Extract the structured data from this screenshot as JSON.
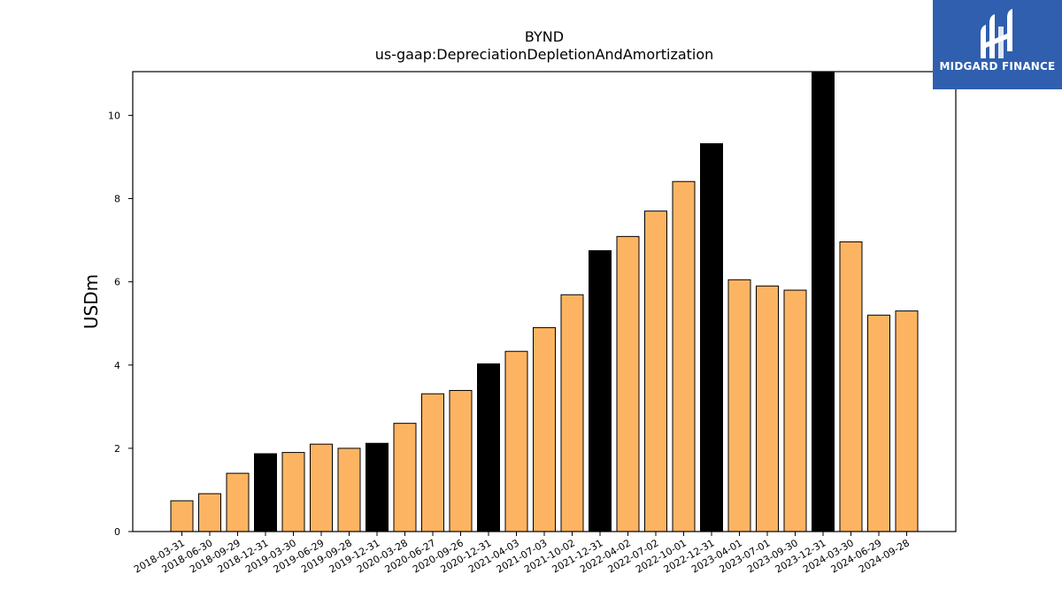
{
  "chart_data": {
    "type": "bar",
    "title": "BYND",
    "subtitle": "us-gaap:DepreciationDepletionAndAmortization",
    "xlabel": "",
    "ylabel": "USDm",
    "ylim": [
      0,
      11.05
    ],
    "yticks": [
      0,
      2,
      4,
      6,
      8,
      10
    ],
    "grid": false,
    "categories": [
      "2018-03-31",
      "2018-06-30",
      "2018-09-29",
      "2018-12-31",
      "2019-03-30",
      "2019-06-29",
      "2019-09-28",
      "2019-12-31",
      "2020-03-28",
      "2020-06-27",
      "2020-09-26",
      "2020-12-31",
      "2021-04-03",
      "2021-07-03",
      "2021-10-02",
      "2021-12-31",
      "2022-04-02",
      "2022-07-02",
      "2022-10-01",
      "2022-12-31",
      "2023-04-01",
      "2023-07-01",
      "2023-09-30",
      "2023-12-31",
      "2024-03-30",
      "2024-06-29",
      "2024-09-28"
    ],
    "values": [
      0.74,
      0.91,
      1.4,
      1.87,
      1.9,
      2.1,
      2.0,
      2.12,
      2.6,
      3.31,
      3.39,
      4.03,
      4.33,
      4.9,
      5.69,
      6.75,
      7.09,
      7.7,
      8.41,
      9.32,
      6.05,
      5.9,
      5.8,
      11.05,
      6.96,
      5.2,
      5.3
    ],
    "annual": [
      false,
      false,
      false,
      true,
      false,
      false,
      false,
      true,
      false,
      false,
      false,
      true,
      false,
      false,
      false,
      true,
      false,
      false,
      false,
      true,
      false,
      false,
      false,
      true,
      false,
      false,
      false
    ],
    "colors": {
      "quarter": "#fdb462",
      "annual": "#000000",
      "edge": "#000000"
    }
  },
  "logo": {
    "text": "MIDGARD FINANCE",
    "background": "#2f5fae"
  }
}
